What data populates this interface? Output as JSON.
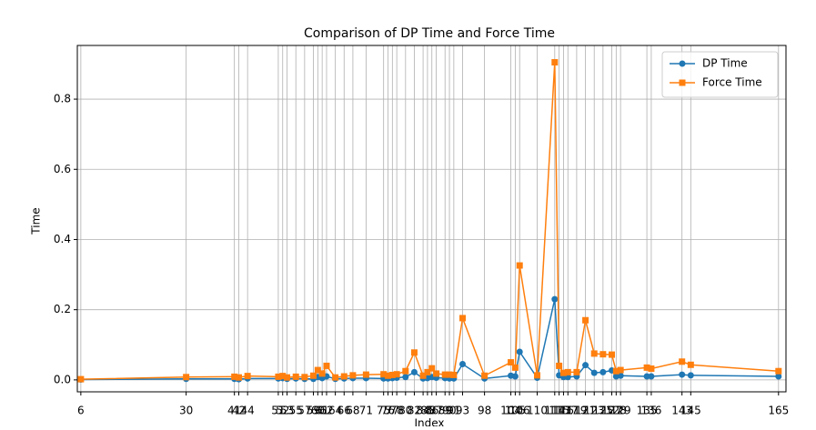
{
  "chart_data": {
    "type": "line",
    "title": "Comparison of DP Time and Force Time",
    "xlabel": "Index",
    "ylabel": "Time",
    "x": [
      6,
      30,
      41,
      42,
      44,
      51,
      52,
      53,
      55,
      57,
      59,
      60,
      61,
      62,
      64,
      66,
      68,
      71,
      75,
      76,
      77,
      78,
      80,
      82,
      84,
      85,
      86,
      87,
      89,
      90,
      91,
      93,
      98,
      104,
      105,
      106,
      110,
      114,
      115,
      116,
      117,
      119,
      121,
      123,
      125,
      127,
      128,
      129,
      135,
      136,
      143,
      145,
      165
    ],
    "series": [
      {
        "name": "DP Time",
        "color": "#1f77b4",
        "marker": "circle",
        "values": [
          0.001,
          0.003,
          0.003,
          0.002,
          0.004,
          0.004,
          0.005,
          0.003,
          0.004,
          0.003,
          0.003,
          0.008,
          0.005,
          0.01,
          0.003,
          0.004,
          0.005,
          0.005,
          0.004,
          0.004,
          0.005,
          0.006,
          0.008,
          0.022,
          0.004,
          0.005,
          0.008,
          0.006,
          0.005,
          0.004,
          0.004,
          0.045,
          0.004,
          0.012,
          0.01,
          0.08,
          0.006,
          0.23,
          0.013,
          0.008,
          0.008,
          0.01,
          0.042,
          0.02,
          0.022,
          0.027,
          0.01,
          0.012,
          0.01,
          0.01,
          0.015,
          0.013,
          0.01
        ]
      },
      {
        "name": "Force Time",
        "color": "#ff7f0e",
        "marker": "square",
        "values": [
          0.002,
          0.008,
          0.009,
          0.007,
          0.011,
          0.009,
          0.011,
          0.007,
          0.009,
          0.008,
          0.012,
          0.028,
          0.018,
          0.04,
          0.007,
          0.01,
          0.013,
          0.015,
          0.016,
          0.012,
          0.014,
          0.016,
          0.025,
          0.078,
          0.012,
          0.022,
          0.033,
          0.018,
          0.015,
          0.015,
          0.014,
          0.176,
          0.012,
          0.05,
          0.035,
          0.326,
          0.013,
          0.905,
          0.04,
          0.02,
          0.022,
          0.022,
          0.17,
          0.075,
          0.073,
          0.072,
          0.025,
          0.028,
          0.035,
          0.032,
          0.052,
          0.043,
          0.025
        ]
      }
    ],
    "xlim": [
      5.2,
      166.7
    ],
    "ylim": [
      -0.034,
      0.953
    ],
    "xticks": [
      6,
      30,
      41,
      42,
      44,
      51,
      52,
      53,
      55,
      57,
      59,
      60,
      61,
      62,
      64,
      66,
      68,
      71,
      75,
      76,
      77,
      78,
      80,
      82,
      84,
      85,
      86,
      87,
      89,
      90,
      91,
      93,
      98,
      104,
      105,
      106,
      110,
      114,
      115,
      116,
      117,
      119,
      121,
      123,
      125,
      127,
      128,
      129,
      135,
      136,
      143,
      145,
      165
    ],
    "yticks": [
      {
        "value": 0,
        "label": "0.0"
      },
      0.2,
      0.4,
      0.6,
      0.8
    ],
    "grid": true,
    "legend": "upper right"
  }
}
